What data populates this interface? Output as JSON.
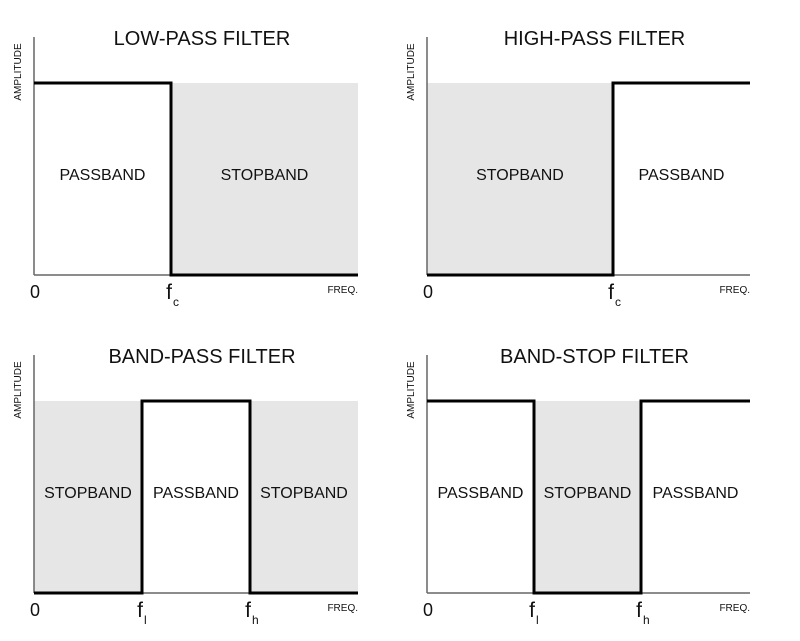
{
  "colors": {
    "stopband_fill": "#e6e6e6",
    "passband_fill": "#ffffff",
    "line": "#000000",
    "axis": "#666666"
  },
  "axis": {
    "y_label": "AMPLITUDE",
    "x_label": "FREQ.",
    "origin": "0",
    "freq_symbol": "f"
  },
  "panels": [
    {
      "title": "LOW-PASS FILTER",
      "regions": [
        {
          "label": "PASSBAND",
          "type": "passband"
        },
        {
          "label": "STOPBAND",
          "type": "stopband"
        }
      ],
      "markers": [
        {
          "sub": "c"
        }
      ]
    },
    {
      "title": "HIGH-PASS FILTER",
      "regions": [
        {
          "label": "STOPBAND",
          "type": "stopband"
        },
        {
          "label": "PASSBAND",
          "type": "passband"
        }
      ],
      "markers": [
        {
          "sub": "c"
        }
      ]
    },
    {
      "title": "BAND-PASS FILTER",
      "regions": [
        {
          "label": "STOPBAND",
          "type": "stopband"
        },
        {
          "label": "PASSBAND",
          "type": "passband"
        },
        {
          "label": "STOPBAND",
          "type": "stopband"
        }
      ],
      "markers": [
        {
          "sub": "l"
        },
        {
          "sub": "h"
        }
      ]
    },
    {
      "title": "BAND-STOP FILTER",
      "regions": [
        {
          "label": "PASSBAND",
          "type": "passband"
        },
        {
          "label": "STOPBAND",
          "type": "stopband"
        },
        {
          "label": "PASSBAND",
          "type": "passband"
        }
      ],
      "markers": [
        {
          "sub": "l"
        },
        {
          "sub": "h"
        }
      ]
    }
  ]
}
